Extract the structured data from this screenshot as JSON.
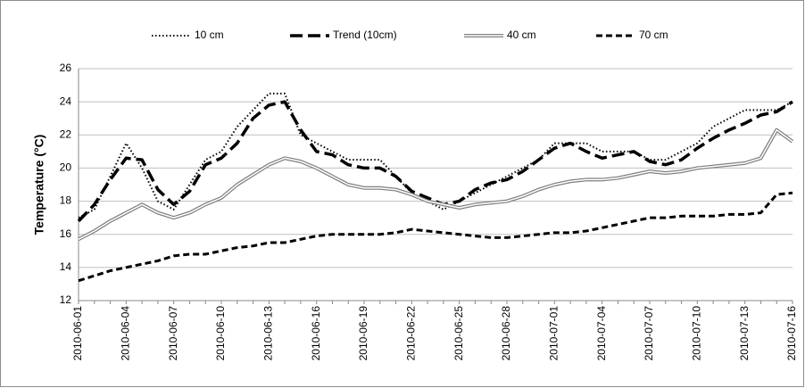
{
  "chart_data": {
    "type": "line",
    "y_label": "Temperature (°C)",
    "categories": [
      "2010-06-01",
      null,
      null,
      "2010-06-04",
      null,
      null,
      "2010-06-07",
      null,
      null,
      "2010-06-10",
      null,
      null,
      "2010-06-13",
      null,
      null,
      "2010-06-16",
      null,
      null,
      "2010-06-19",
      null,
      null,
      "2010-06-22",
      null,
      null,
      "2010-06-25",
      null,
      null,
      "2010-06-28",
      null,
      null,
      "2010-07-01",
      null,
      null,
      "2010-07-04",
      null,
      null,
      "2010-07-07",
      null,
      null,
      "2010-07-10",
      null,
      null,
      "2010-07-13",
      null,
      null,
      "2010-07-16"
    ],
    "ylim": [
      12,
      26
    ],
    "yticks": [
      12,
      14,
      16,
      18,
      20,
      22,
      24,
      26
    ],
    "grid": true,
    "series": [
      {
        "name": "10 cm",
        "color": "#000000",
        "style": "dotted",
        "values": [
          17,
          17.5,
          19.5,
          21.5,
          20,
          18,
          17.5,
          19,
          20.5,
          21,
          22.5,
          23.5,
          24.5,
          24.5,
          22,
          21.5,
          21,
          20.5,
          20.5,
          20.5,
          19.5,
          18.5,
          18,
          17.5,
          18,
          18.5,
          19,
          19.5,
          20,
          20.5,
          21.5,
          21.5,
          21.5,
          21,
          21,
          21,
          20.5,
          20.5,
          21,
          21.5,
          22.5,
          23,
          23.5,
          23.5,
          23.5,
          24
        ]
      },
      {
        "name": "Trend (10cm)",
        "color": "#000000",
        "style": "long-dash",
        "values": [
          16.8,
          17.8,
          19.3,
          20.6,
          20.5,
          18.7,
          17.8,
          18.6,
          20.2,
          20.6,
          21.5,
          23,
          23.8,
          24,
          22.3,
          21,
          20.8,
          20.2,
          20,
          20,
          19.5,
          18.6,
          18.2,
          17.8,
          18,
          18.7,
          19.1,
          19.3,
          19.8,
          20.5,
          21.2,
          21.5,
          21,
          20.6,
          20.8,
          21,
          20.4,
          20.2,
          20.5,
          21.2,
          21.8,
          22.3,
          22.7,
          23.2,
          23.4,
          24
        ]
      },
      {
        "name": "40 cm",
        "color": "#808080",
        "style": "double",
        "values": [
          15.7,
          16.2,
          16.8,
          17.3,
          17.8,
          17.3,
          17,
          17.3,
          17.8,
          18.2,
          19,
          19.6,
          20.2,
          20.6,
          20.4,
          20,
          19.5,
          19,
          18.8,
          18.8,
          18.7,
          18.4,
          18,
          17.8,
          17.6,
          17.8,
          17.9,
          18,
          18.3,
          18.7,
          19,
          19.2,
          19.3,
          19.3,
          19.4,
          19.6,
          19.8,
          19.7,
          19.8,
          20,
          20.1,
          20.2,
          20.3,
          20.6,
          22.3,
          21.6
        ]
      },
      {
        "name": "70 cm",
        "color": "#000000",
        "style": "dash",
        "values": [
          13.2,
          13.5,
          13.8,
          14,
          14.2,
          14.4,
          14.7,
          14.8,
          14.8,
          15,
          15.2,
          15.3,
          15.5,
          15.5,
          15.7,
          15.9,
          16,
          16,
          16,
          16,
          16.1,
          16.3,
          16.2,
          16.1,
          16,
          15.9,
          15.8,
          15.8,
          15.9,
          16,
          16.1,
          16.1,
          16.2,
          16.4,
          16.6,
          16.8,
          17,
          17,
          17.1,
          17.1,
          17.1,
          17.2,
          17.2,
          17.3,
          18.4,
          18.5
        ]
      }
    ]
  }
}
